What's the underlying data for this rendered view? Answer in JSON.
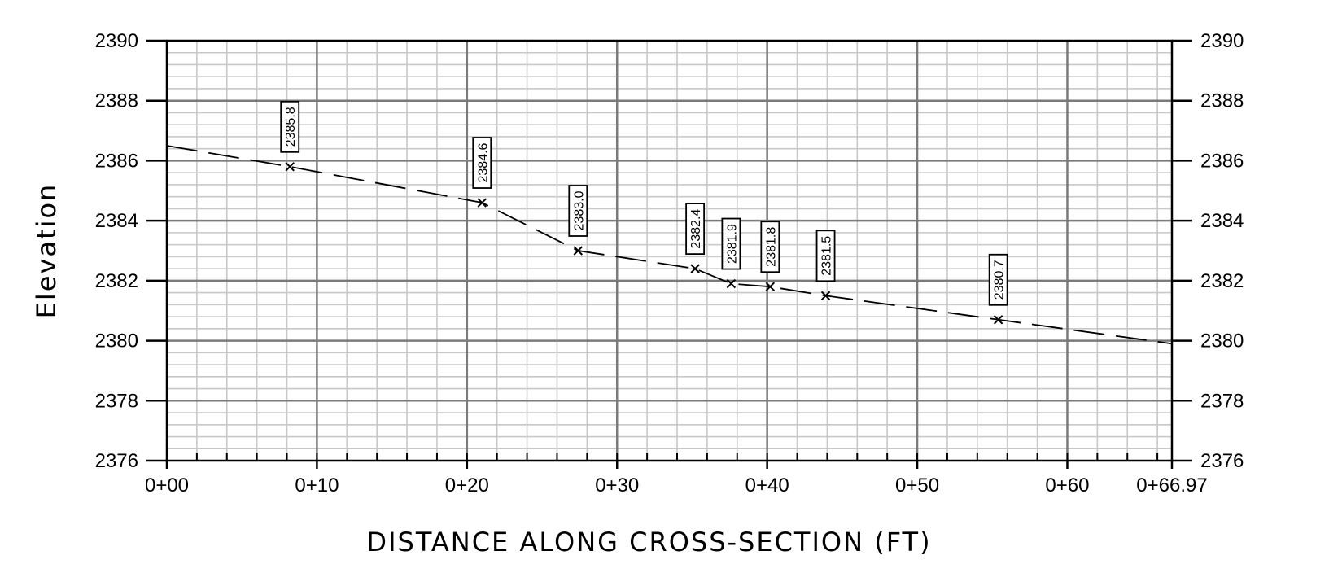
{
  "chart_data": {
    "type": "line",
    "title": "",
    "xlabel": "DISTANCE ALONG CROSS-SECTION (FT)",
    "ylabel": "Elevation",
    "xlim": [
      0,
      66.97
    ],
    "ylim": [
      2376,
      2390
    ],
    "x_ticks": [
      {
        "value": 0,
        "label": "0+00"
      },
      {
        "value": 10,
        "label": "0+10"
      },
      {
        "value": 20,
        "label": "0+20"
      },
      {
        "value": 30,
        "label": "0+30"
      },
      {
        "value": 40,
        "label": "0+40"
      },
      {
        "value": 50,
        "label": "0+50"
      },
      {
        "value": 60,
        "label": "0+60"
      },
      {
        "value": 66.97,
        "label": "0+66.97"
      }
    ],
    "y_ticks": [
      2376,
      2378,
      2380,
      2382,
      2384,
      2386,
      2388,
      2390
    ],
    "y_ticks_right": true,
    "grid": true,
    "series": [
      {
        "line_style": "dashed",
        "x": [
          0,
          8.2,
          21.0,
          27.4,
          35.2,
          37.6,
          40.2,
          43.9,
          55.4,
          66.97
        ],
        "y": [
          2386.5,
          2385.8,
          2384.6,
          2383.0,
          2382.4,
          2381.9,
          2381.8,
          2381.5,
          2380.7,
          2379.9
        ]
      }
    ],
    "points": [
      {
        "x": 8.2,
        "y": 2385.8,
        "label": "2385.8"
      },
      {
        "x": 21.0,
        "y": 2384.6,
        "label": "2384.6"
      },
      {
        "x": 27.4,
        "y": 2383.0,
        "label": "2383.0"
      },
      {
        "x": 35.2,
        "y": 2382.4,
        "label": "2382.4"
      },
      {
        "x": 37.6,
        "y": 2381.9,
        "label": "2381.9"
      },
      {
        "x": 40.2,
        "y": 2381.8,
        "label": "2381.8"
      },
      {
        "x": 43.9,
        "y": 2381.5,
        "label": "2381.5"
      },
      {
        "x": 55.4,
        "y": 2380.7,
        "label": "2380.7"
      }
    ]
  },
  "colors": {
    "major_grid": "#7a7a7a",
    "minor_grid": "#c8c8c8",
    "axis": "#000000",
    "line": "#000000"
  }
}
